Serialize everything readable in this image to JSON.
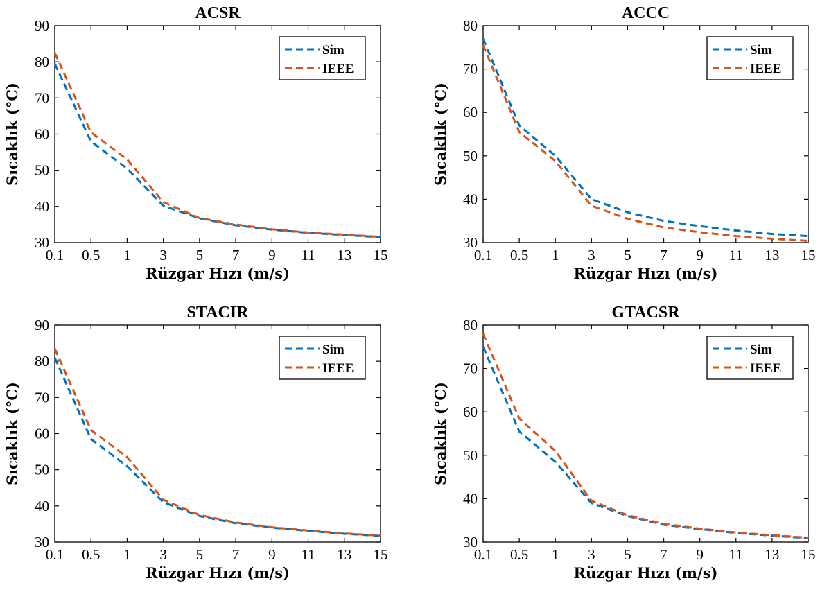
{
  "colors": {
    "sim": "#0072BD",
    "ieee": "#D95319",
    "axis": "#000000",
    "background": "#ffffff"
  },
  "chart_data": [
    {
      "type": "line",
      "title": "ACSR",
      "xlabel": "Rüzgar Hızı (m/s)",
      "ylabel": "Sıcaklık (°C)",
      "ylim": [
        30,
        90
      ],
      "yticks": [
        30,
        40,
        50,
        60,
        70,
        80,
        90
      ],
      "categories": [
        "0.1",
        "0.5",
        "1",
        "3",
        "5",
        "7",
        "9",
        "11",
        "13",
        "15"
      ],
      "legend_position": "top-right",
      "grid": false,
      "series": [
        {
          "name": "Sim",
          "values": [
            79.5,
            58.0,
            50.5,
            40.2,
            36.7,
            34.8,
            33.6,
            32.7,
            32.1,
            31.5
          ]
        },
        {
          "name": "IEEE",
          "values": [
            82.5,
            60.5,
            53.0,
            41.2,
            36.8,
            35.0,
            33.7,
            32.8,
            32.2,
            31.6
          ]
        }
      ]
    },
    {
      "type": "line",
      "title": "ACCC",
      "xlabel": "Rüzgar Hızı (m/s)",
      "ylabel": "Sıcaklık (°C)",
      "ylim": [
        30,
        80
      ],
      "yticks": [
        30,
        40,
        50,
        60,
        70,
        80
      ],
      "categories": [
        "0.1",
        "0.5",
        "1",
        "3",
        "5",
        "7",
        "9",
        "11",
        "13",
        "15"
      ],
      "legend_position": "top-right",
      "grid": false,
      "series": [
        {
          "name": "Sim",
          "values": [
            77.0,
            57.0,
            50.0,
            40.0,
            37.0,
            35.0,
            33.8,
            32.8,
            32.0,
            31.5
          ]
        },
        {
          "name": "IEEE",
          "values": [
            75.5,
            55.5,
            48.8,
            38.5,
            35.5,
            33.5,
            32.4,
            31.5,
            30.9,
            30.4
          ]
        }
      ]
    },
    {
      "type": "line",
      "title": "STACIR",
      "xlabel": "Rüzgar Hızı (m/s)",
      "ylabel": "Sıcaklık (°C)",
      "ylim": [
        30,
        90
      ],
      "yticks": [
        30,
        40,
        50,
        60,
        70,
        80,
        90
      ],
      "categories": [
        "0.1",
        "0.5",
        "1",
        "3",
        "5",
        "7",
        "9",
        "11",
        "13",
        "15"
      ],
      "legend_position": "top-right",
      "grid": false,
      "series": [
        {
          "name": "Sim",
          "values": [
            81.0,
            58.5,
            51.0,
            41.0,
            37.2,
            35.2,
            34.0,
            33.1,
            32.3,
            31.7
          ]
        },
        {
          "name": "IEEE",
          "values": [
            83.5,
            61.0,
            53.5,
            41.7,
            37.5,
            35.4,
            34.1,
            33.2,
            32.4,
            31.8
          ]
        }
      ]
    },
    {
      "type": "line",
      "title": "GTACSR",
      "xlabel": "Rüzgar Hızı (m/s)",
      "ylabel": "Sıcaklık (°C)",
      "ylim": [
        30,
        80
      ],
      "yticks": [
        30,
        40,
        50,
        60,
        70,
        80
      ],
      "categories": [
        "0.1",
        "0.5",
        "1",
        "3",
        "5",
        "7",
        "9",
        "11",
        "13",
        "15"
      ],
      "legend_position": "top-right",
      "grid": false,
      "series": [
        {
          "name": "Sim",
          "values": [
            75.0,
            55.5,
            48.5,
            39.0,
            36.0,
            34.0,
            33.0,
            32.1,
            31.5,
            30.9
          ]
        },
        {
          "name": "IEEE",
          "values": [
            78.0,
            58.5,
            51.0,
            39.5,
            36.2,
            34.2,
            33.1,
            32.2,
            31.6,
            31.0
          ]
        }
      ]
    }
  ]
}
